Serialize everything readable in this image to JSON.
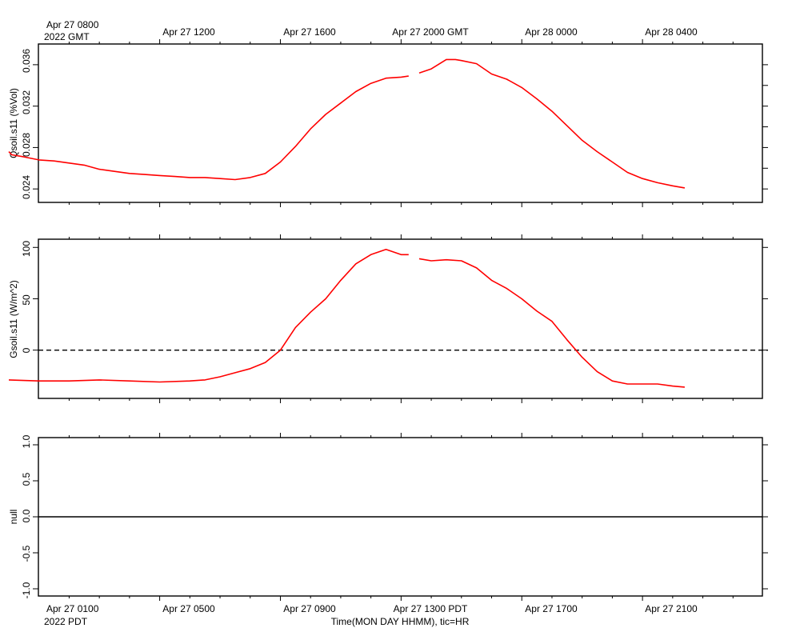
{
  "top_axis": {
    "first_label_line1": "Apr 27 0800",
    "first_label_line2": "2022 GMT",
    "labels": [
      "Apr 27 1200",
      "Apr 27 1600",
      "Apr 27 2000 GMT",
      "Apr 28 0000",
      "Apr 28 0400"
    ]
  },
  "bottom_axis": {
    "first_label_line1": "Apr 27 0100",
    "first_label_line2": "2022 PDT",
    "labels": [
      "Apr 27 0500",
      "Apr 27 0900",
      "Apr 27 1300 PDT",
      "Apr 27 1700",
      "Apr 27 2100"
    ],
    "title": "Time(MON DAY HHMM), tic=HR"
  },
  "colors": {
    "series": "#ff0000",
    "axis": "#000000",
    "zero_line": "#000000"
  },
  "chart_data": [
    {
      "type": "line",
      "ylabel": "Qsoil.s11 (%Vol)",
      "x_unit": "hours since Apr 27 0000 PDT",
      "xlim": [
        0,
        24
      ],
      "ylim": [
        0.0227,
        0.038
      ],
      "yticks": [
        "0.024",
        "0.028",
        "0.032",
        "0.036"
      ],
      "grid": false,
      "segments": [
        {
          "x": [
            0.0,
            0.1,
            0.5,
            1.0,
            1.5,
            2.0,
            2.5,
            3.0,
            3.5,
            4.0,
            4.5,
            5.0,
            5.5,
            6.0,
            6.5,
            7.0,
            7.5,
            8.0,
            8.5,
            9.0,
            9.5,
            10.0,
            10.5,
            11.0,
            11.5,
            12.0,
            12.5,
            13.0,
            13.25
          ],
          "y": [
            0.0276,
            0.0273,
            0.0271,
            0.0268,
            0.0267,
            0.0265,
            0.0263,
            0.0259,
            0.0257,
            0.0255,
            0.0254,
            0.0253,
            0.0252,
            0.0251,
            0.0251,
            0.025,
            0.0249,
            0.0251,
            0.0255,
            0.0266,
            0.0281,
            0.0298,
            0.0312,
            0.0323,
            0.0334,
            0.0342,
            0.0347,
            0.0348,
            0.0349
          ]
        },
        {
          "x": [
            13.6,
            14.0,
            14.5,
            14.8,
            15.0,
            15.5,
            16.0,
            16.5,
            17.0,
            17.5,
            18.0,
            18.5,
            19.0,
            19.5,
            20.0,
            20.5,
            21.0,
            21.5,
            22.0,
            22.4
          ],
          "y": [
            0.0352,
            0.0356,
            0.0365,
            0.0365,
            0.0364,
            0.0361,
            0.0351,
            0.0346,
            0.0338,
            0.0327,
            0.0315,
            0.0301,
            0.0287,
            0.0276,
            0.0266,
            0.0256,
            0.025,
            0.0246,
            0.0243,
            0.0241
          ]
        }
      ]
    },
    {
      "type": "line",
      "ylabel": "Gsoil.s11 (W/m^2)",
      "x_unit": "hours since Apr 27 0000 PDT",
      "xlim": [
        0,
        24
      ],
      "ylim": [
        -47,
        108
      ],
      "yticks": [
        "0",
        "50",
        "100"
      ],
      "reference_line": {
        "y": 0,
        "style": "dashed"
      },
      "grid": false,
      "segments": [
        {
          "x": [
            0.0,
            1.0,
            2.0,
            3.0,
            4.0,
            5.0,
            6.0,
            6.5,
            7.0,
            7.5,
            8.0,
            8.5,
            9.0,
            9.5,
            10.0,
            10.5,
            11.0,
            11.5,
            12.0,
            12.5,
            13.0,
            13.25
          ],
          "y": [
            -29,
            -30,
            -30,
            -29,
            -30,
            -31,
            -30,
            -29,
            -26,
            -22,
            -18,
            -12,
            0,
            22,
            37,
            50,
            68,
            84,
            93,
            98,
            93,
            93
          ]
        },
        {
          "x": [
            13.6,
            14.0,
            14.5,
            15.0,
            15.5,
            16.0,
            16.5,
            17.0,
            17.5,
            18.0,
            18.5,
            19.0,
            19.5,
            20.0,
            20.5,
            21.0,
            21.5,
            22.0,
            22.4
          ],
          "y": [
            89,
            87,
            88,
            87,
            80,
            68,
            60,
            50,
            38,
            28,
            10,
            -7,
            -21,
            -30,
            -33,
            -33,
            -33,
            -35,
            -36
          ]
        }
      ]
    },
    {
      "type": "line",
      "ylabel": "null",
      "x_unit": "hours since Apr 27 0000 PDT",
      "xlim": [
        0,
        24
      ],
      "ylim": [
        -1.1,
        1.1
      ],
      "yticks": [
        "-1.0",
        "-0.5",
        "0.0",
        "0.5",
        "1.0"
      ],
      "reference_line": {
        "y": 0,
        "style": "solid"
      },
      "grid": false,
      "segments": []
    }
  ]
}
